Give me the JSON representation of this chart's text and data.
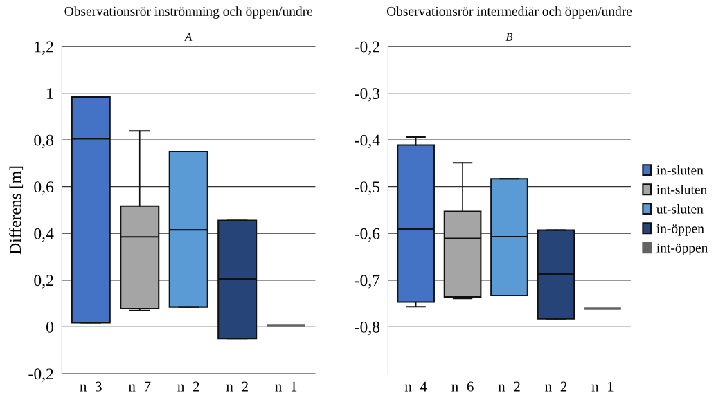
{
  "chart_data": [
    {
      "type": "box",
      "title": "Observationsrör inströmning och öppen/undre",
      "subtitle": "A",
      "ylabel": "Differens [m]",
      "categories": [
        "n=3",
        "n=7",
        "n=2",
        "n=2",
        "n=1"
      ],
      "ylim": [
        -0.2,
        1.2
      ],
      "yticks": [
        {
          "value": -0.2,
          "label": "-0,2"
        },
        {
          "value": 0,
          "label": "0"
        },
        {
          "value": 0.2,
          "label": "0,2"
        },
        {
          "value": 0.4,
          "label": "0,4"
        },
        {
          "value": 0.6,
          "label": "0,6"
        },
        {
          "value": 0.8,
          "label": "0,8"
        },
        {
          "value": 1,
          "label": "1"
        },
        {
          "value": 1.2,
          "label": "1,2"
        }
      ],
      "grid": "y",
      "legend": false,
      "series": [
        {
          "color": "#4472c4",
          "boxes": [
            {
              "low": 0.017,
              "q1": 0.017,
              "median": 0.805,
              "q3": 0.984,
              "high": 0.984
            },
            null,
            null,
            null,
            null
          ]
        },
        {
          "color": "#a5a5a5",
          "boxes": [
            null,
            {
              "low": 0.07,
              "q1": 0.078,
              "median": 0.385,
              "q3": 0.517,
              "high": 0.838
            },
            null,
            null,
            null
          ]
        },
        {
          "color": "#5b9bd5",
          "boxes": [
            null,
            null,
            {
              "low": 0.085,
              "q1": 0.085,
              "median": 0.415,
              "q3": 0.75,
              "high": 0.75
            },
            null,
            null
          ]
        },
        {
          "color": "#264478",
          "boxes": [
            null,
            null,
            null,
            {
              "low": -0.05,
              "q1": -0.05,
              "median": 0.205,
              "q3": 0.455,
              "high": 0.455
            },
            null
          ]
        },
        {
          "color": "#636363",
          "boxes": [
            null,
            null,
            null,
            null,
            {
              "low": 0.007,
              "q1": 0.007,
              "median": 0.007,
              "q3": 0.007,
              "high": 0.007
            }
          ]
        }
      ]
    },
    {
      "type": "box",
      "title": "Observationsrör intermediär och öppen/undre",
      "subtitle": "B",
      "categories": [
        "n=4",
        "n=6",
        "n=2",
        "n=2",
        "n=1"
      ],
      "ylim": [
        -0.9,
        -0.2
      ],
      "yticks": [
        {
          "value": -0.8,
          "label": "-0,8"
        },
        {
          "value": -0.7,
          "label": "-0,7"
        },
        {
          "value": -0.6,
          "label": "-0,6"
        },
        {
          "value": -0.5,
          "label": "-0,5"
        },
        {
          "value": -0.4,
          "label": "-0,4"
        },
        {
          "value": -0.3,
          "label": "-0,3"
        },
        {
          "value": -0.2,
          "label": "-0,2"
        }
      ],
      "grid": "y",
      "legend": "right",
      "series": [
        {
          "name": "in-sluten",
          "color": "#4472c4",
          "boxes": [
            {
              "low": -0.757,
              "q1": -0.747,
              "median": -0.591,
              "q3": -0.411,
              "high": -0.394
            },
            null,
            null,
            null,
            null
          ]
        },
        {
          "name": "int-sluten",
          "color": "#a5a5a5",
          "boxes": [
            null,
            {
              "low": -0.739,
              "q1": -0.736,
              "median": -0.611,
              "q3": -0.553,
              "high": -0.449
            },
            null,
            null,
            null
          ]
        },
        {
          "name": "ut-sluten",
          "color": "#5b9bd5",
          "boxes": [
            null,
            null,
            {
              "low": -0.733,
              "q1": -0.733,
              "median": -0.607,
              "q3": -0.483,
              "high": -0.483
            },
            null,
            null
          ]
        },
        {
          "name": "in-öppen",
          "color": "#264478",
          "boxes": [
            null,
            null,
            null,
            {
              "low": -0.783,
              "q1": -0.783,
              "median": -0.687,
              "q3": -0.593,
              "high": -0.593
            },
            null
          ]
        },
        {
          "name": "int-öppen",
          "color": "#636363",
          "boxes": [
            null,
            null,
            null,
            null,
            {
              "low": -0.761,
              "q1": -0.761,
              "median": -0.761,
              "q3": -0.761,
              "high": -0.761
            }
          ]
        }
      ]
    }
  ]
}
